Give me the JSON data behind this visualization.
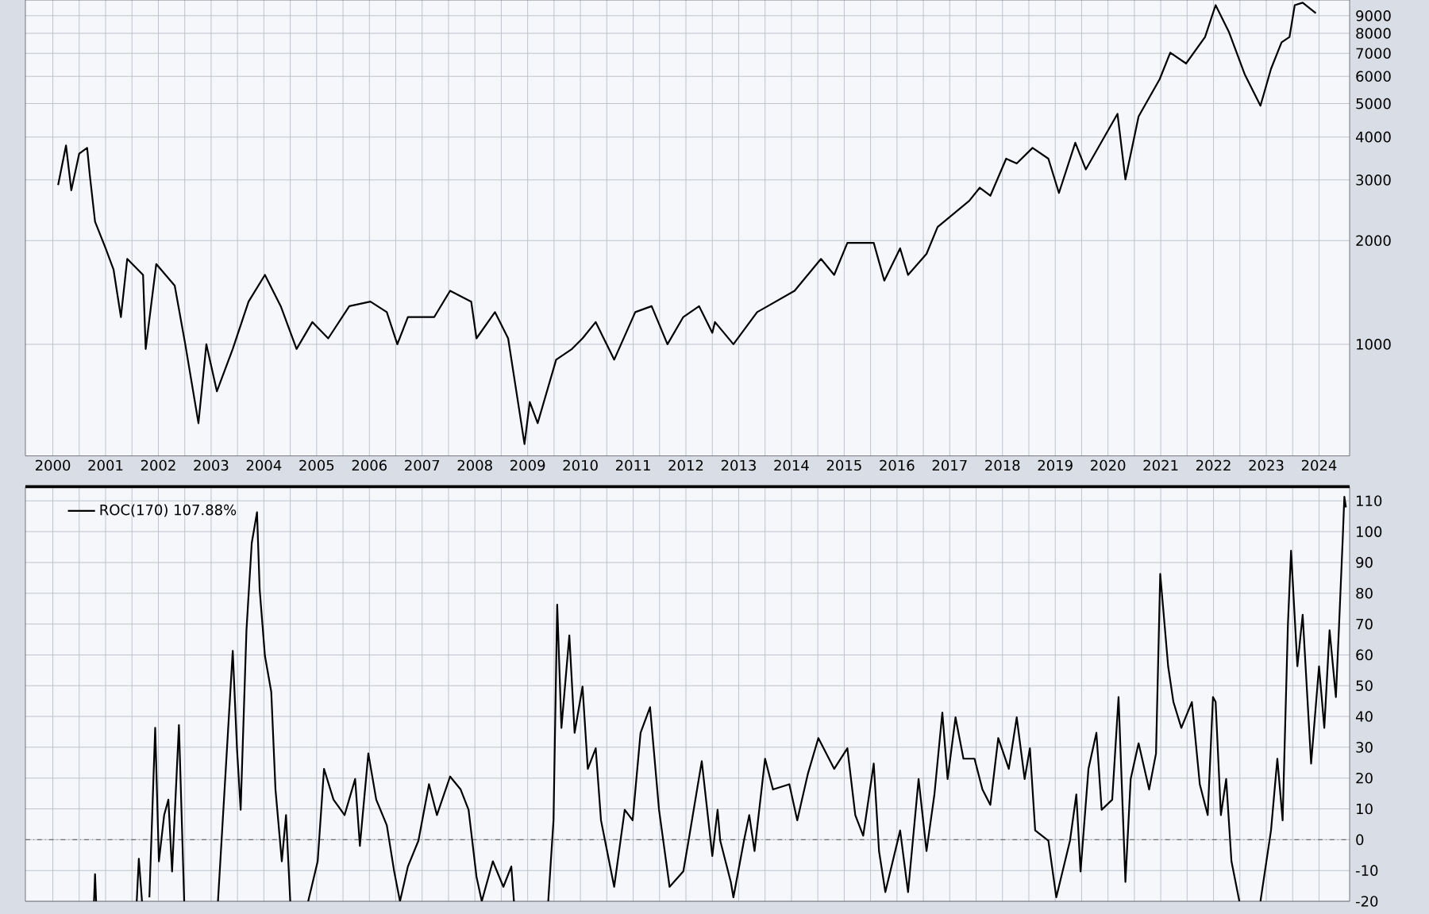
{
  "chart_data": [
    {
      "type": "line",
      "log": "y",
      "grid": true,
      "xlim": [
        1999.48,
        2024.58
      ],
      "ylim": [
        474,
        10000
      ],
      "xticks": [
        2000,
        {
          "value": 2000.5,
          "label": null
        },
        2001,
        {
          "value": 2001.5,
          "label": null
        },
        2002,
        {
          "value": 2002.5,
          "label": null
        },
        2003,
        {
          "value": 2003.5,
          "label": null
        },
        2004,
        {
          "value": 2004.5,
          "label": null
        },
        2005,
        {
          "value": 2005.5,
          "label": null
        },
        2006,
        {
          "value": 2006.5,
          "label": null
        },
        2007,
        {
          "value": 2007.5,
          "label": null
        },
        2008,
        {
          "value": 2008.5,
          "label": null
        },
        2009,
        {
          "value": 2009.5,
          "label": null
        },
        2010,
        {
          "value": 2010.5,
          "label": null
        },
        2011,
        {
          "value": 2011.5,
          "label": null
        },
        2012,
        {
          "value": 2012.5,
          "label": null
        },
        2013,
        {
          "value": 2013.5,
          "label": null
        },
        2014,
        {
          "value": 2014.5,
          "label": null
        },
        2015,
        {
          "value": 2015.5,
          "label": null
        },
        2016,
        {
          "value": 2016.5,
          "label": null
        },
        2017,
        {
          "value": 2017.5,
          "label": null
        },
        2018,
        {
          "value": 2018.5,
          "label": null
        },
        2019,
        {
          "value": 2019.5,
          "label": null
        },
        2020,
        {
          "value": 2020.5,
          "label": null
        },
        2021,
        {
          "value": 2021.5,
          "label": null
        },
        2022,
        {
          "value": 2022.5,
          "label": null
        },
        2023,
        {
          "value": 2023.5,
          "label": null
        },
        2024
      ],
      "yticks": [
        1000,
        2000,
        3000,
        4000,
        5000,
        6000,
        7000,
        8000,
        9000
      ],
      "x": [
        2000.1,
        2000.25,
        2000.35,
        2000.5,
        2000.65,
        2000.7,
        2000.8,
        2001.0,
        2001.15,
        2001.29,
        2001.41,
        2001.71,
        2001.76,
        2001.96,
        2002.31,
        2002.51,
        2002.76,
        2002.91,
        2003.11,
        2003.41,
        2003.71,
        2004.02,
        2004.32,
        2004.62,
        2004.92,
        2005.22,
        2005.62,
        2006.02,
        2006.33,
        2006.53,
        2006.73,
        2007.23,
        2007.53,
        2007.93,
        2008.03,
        2008.38,
        2008.63,
        2008.94,
        2009.04,
        2009.19,
        2009.54,
        2009.84,
        2010.04,
        2010.29,
        2010.64,
        2011.04,
        2011.35,
        2011.65,
        2011.95,
        2012.25,
        2012.5,
        2012.55,
        2012.9,
        2013.35,
        2013.55,
        2014.06,
        2014.56,
        2014.81,
        2015.06,
        2015.56,
        2015.76,
        2016.06,
        2016.21,
        2016.56,
        2016.77,
        2017.37,
        2017.57,
        2017.77,
        2018.07,
        2018.27,
        2018.57,
        2018.87,
        2019.07,
        2019.38,
        2019.58,
        2020.18,
        2020.33,
        2020.58,
        2020.98,
        2021.18,
        2021.48,
        2021.84,
        2022.04,
        2022.29,
        2022.59,
        2022.89,
        2023.09,
        2023.29,
        2023.44,
        2023.54,
        2023.69,
        2023.94
      ],
      "series": [
        {
          "color": "#000000",
          "values": [
            2900,
            3780,
            2800,
            3580,
            3720,
            3110,
            2270,
            1900,
            1650,
            1200,
            1770,
            1590,
            969,
            1710,
            1480,
            1000,
            590,
            1000,
            730,
            969,
            1330,
            1590,
            1290,
            969,
            1160,
            1040,
            1290,
            1330,
            1240,
            1000,
            1200,
            1200,
            1430,
            1330,
            1040,
            1240,
            1040,
            513,
            680,
            590,
            902,
            969,
            1040,
            1160,
            902,
            1240,
            1290,
            1000,
            1200,
            1290,
            1080,
            1160,
            1000,
            1240,
            1290,
            1430,
            1770,
            1590,
            1970,
            1970,
            1530,
            1900,
            1590,
            1830,
            2190,
            2610,
            2850,
            2700,
            3460,
            3350,
            3720,
            3460,
            2750,
            3850,
            3220,
            4670,
            3010,
            4590,
            5890,
            7030,
            6540,
            7810,
            9660,
            8090,
            6090,
            4930,
            6310,
            7530,
            7810,
            9660,
            9820,
            9160
          ]
        }
      ]
    },
    {
      "type": "line",
      "grid": true,
      "legend": "top left",
      "tick_labels": "y",
      "xlim": [
        1999.48,
        2024.58
      ],
      "ylim": [
        -20,
        114.6
      ],
      "xticks": [
        2000,
        {
          "value": 2000.5,
          "label": null
        },
        2001,
        {
          "value": 2001.5,
          "label": null
        },
        2002,
        {
          "value": 2002.5,
          "label": null
        },
        2003,
        {
          "value": 2003.5,
          "label": null
        },
        2004,
        {
          "value": 2004.5,
          "label": null
        },
        2005,
        {
          "value": 2005.5,
          "label": null
        },
        2006,
        {
          "value": 2006.5,
          "label": null
        },
        2007,
        {
          "value": 2007.5,
          "label": null
        },
        2008,
        {
          "value": 2008.5,
          "label": null
        },
        2009,
        {
          "value": 2009.5,
          "label": null
        },
        2010,
        {
          "value": 2010.5,
          "label": null
        },
        2011,
        {
          "value": 2011.5,
          "label": null
        },
        2012,
        {
          "value": 2012.5,
          "label": null
        },
        2013,
        {
          "value": 2013.5,
          "label": null
        },
        2014,
        {
          "value": 2014.5,
          "label": null
        },
        2015,
        {
          "value": 2015.5,
          "label": null
        },
        2016,
        {
          "value": 2016.5,
          "label": null
        },
        2017,
        {
          "value": 2017.5,
          "label": null
        },
        2018,
        {
          "value": 2018.5,
          "label": null
        },
        2019,
        {
          "value": 2019.5,
          "label": null
        },
        2020,
        {
          "value": 2020.5,
          "label": null
        },
        2021,
        {
          "value": 2021.5,
          "label": null
        },
        2022,
        {
          "value": 2022.5,
          "label": null
        },
        2023,
        {
          "value": 2023.5,
          "label": null
        },
        2024
      ],
      "yticks": [
        -20,
        -10,
        0,
        10,
        20,
        30,
        40,
        50,
        60,
        70,
        80,
        90,
        100,
        110
      ],
      "ref_lines": [
        {
          "axis": "y",
          "value": 0,
          "color": "#707070",
          "line_style": "dashdot"
        }
      ],
      "x": [
        2000.78,
        2000.8,
        2000.82,
        2001.2,
        2001.59,
        2001.63,
        2001.69,
        2001.76,
        2001.83,
        2001.94,
        2002.01,
        2002.11,
        2002.19,
        2002.26,
        2002.39,
        2002.49,
        2002.8,
        2003.13,
        2003.41,
        2003.49,
        2003.56,
        2003.67,
        2003.77,
        2003.87,
        2003.92,
        2004.02,
        2004.14,
        2004.22,
        2004.34,
        2004.42,
        2004.5,
        2004.7,
        2004.84,
        2005.02,
        2005.14,
        2005.32,
        2005.53,
        2005.73,
        2005.82,
        2005.98,
        2006.13,
        2006.33,
        2006.47,
        2006.58,
        2006.73,
        2006.93,
        2007.13,
        2007.28,
        2007.53,
        2007.73,
        2007.88,
        2008.03,
        2008.13,
        2008.34,
        2008.54,
        2008.69,
        2008.74,
        2009.0,
        2009.39,
        2009.49,
        2009.56,
        2009.64,
        2009.79,
        2009.89,
        2010.04,
        2010.14,
        2010.29,
        2010.39,
        2010.64,
        2010.84,
        2010.99,
        2011.14,
        2011.32,
        2011.49,
        2011.69,
        2011.95,
        2012.05,
        2012.3,
        2012.5,
        2012.6,
        2012.65,
        2012.85,
        2012.9,
        2013.1,
        2013.2,
        2013.3,
        2013.5,
        2013.65,
        2013.96,
        2014.11,
        2014.31,
        2014.51,
        2014.81,
        2015.06,
        2015.21,
        2015.36,
        2015.56,
        2015.66,
        2015.78,
        2016.06,
        2016.21,
        2016.41,
        2016.56,
        2016.71,
        2016.86,
        2016.96,
        2017.11,
        2017.26,
        2017.47,
        2017.62,
        2017.77,
        2017.92,
        2018.12,
        2018.27,
        2018.42,
        2018.52,
        2018.62,
        2018.87,
        2019.02,
        2019.28,
        2019.4,
        2019.48,
        2019.63,
        2019.78,
        2019.88,
        2020.08,
        2020.2,
        2020.33,
        2020.43,
        2020.58,
        2020.78,
        2020.91,
        2020.99,
        2021.14,
        2021.24,
        2021.39,
        2021.59,
        2021.74,
        2021.89,
        2021.99,
        2022.04,
        2022.14,
        2022.24,
        2022.34,
        2022.49,
        2022.7,
        2022.89,
        2023.09,
        2023.21,
        2023.31,
        2023.41,
        2023.47,
        2023.59,
        2023.69,
        2023.85,
        2024.0,
        2024.1,
        2024.2,
        2024.32,
        2024.38,
        2024.45,
        2024.48,
        2024.51
      ],
      "series": [
        {
          "name": "ROC(170) 107.88%",
          "color": "#000000",
          "values": [
            -20,
            -11.2,
            -20,
            null,
            -20,
            -6.2,
            -20,
            null,
            -18.7,
            36.3,
            -7,
            8,
            13,
            -10.3,
            37.2,
            -20,
            null,
            -20,
            61.3,
            29.7,
            9.7,
            68,
            96.3,
            106.3,
            81.3,
            59.7,
            48,
            16.3,
            -7,
            8,
            -20,
            null,
            -20,
            -7,
            23,
            13,
            8,
            19.7,
            -2,
            28,
            13,
            4.7,
            -10.3,
            -20,
            -8.7,
            -0.3,
            18,
            8,
            20.5,
            16.3,
            9.7,
            -12,
            -20,
            -7,
            -15.3,
            -8.7,
            -20,
            null,
            -20,
            6.3,
            76.3,
            36.3,
            66.3,
            34.7,
            49.7,
            23,
            29.7,
            6.3,
            -15.3,
            9.7,
            6.3,
            34.7,
            43,
            9.7,
            -15.3,
            -10.3,
            -0.3,
            25.5,
            -5.3,
            9.7,
            -0.3,
            -13.7,
            -18.7,
            -0.3,
            8,
            -3.7,
            26.3,
            16.3,
            18,
            6.3,
            21.3,
            33,
            23,
            29.7,
            8,
            1.3,
            24.7,
            -3.7,
            -17,
            3,
            -17,
            19.7,
            -3.7,
            14.7,
            41.3,
            19.7,
            39.7,
            26.3,
            26.3,
            16.3,
            11.3,
            33,
            23,
            39.7,
            19.7,
            29.7,
            3,
            -0.3,
            -18.7,
            -0.3,
            14.7,
            -10.3,
            23,
            34.7,
            9.7,
            13,
            46.3,
            -13.7,
            19.7,
            31.3,
            16.3,
            28,
            86.3,
            56.3,
            44.7,
            36.3,
            44.7,
            18,
            8,
            46.3,
            44.7,
            8,
            19.7,
            -7,
            -20,
            null,
            -20,
            3,
            26.3,
            6.3,
            69.7,
            93.8,
            56.3,
            73,
            24.7,
            56.3,
            36.3,
            68,
            46.3,
            69.7,
            98,
            111.3,
            107.88
          ]
        }
      ]
    }
  ]
}
